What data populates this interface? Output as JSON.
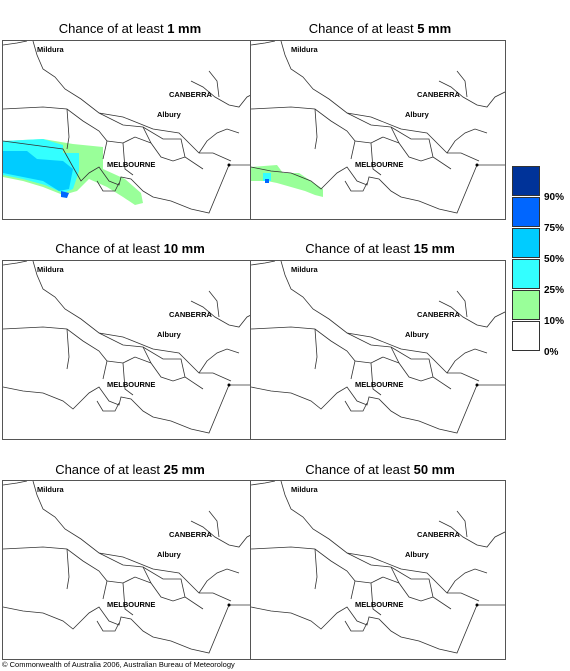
{
  "title_prefix": "Chance of at least",
  "panels": [
    {
      "amount": "1 mm"
    },
    {
      "amount": "5 mm"
    },
    {
      "amount": "10 mm"
    },
    {
      "amount": "15 mm"
    },
    {
      "amount": "25 mm"
    },
    {
      "amount": "50 mm"
    }
  ],
  "cities": {
    "mildura": "Mildura",
    "canberra": "CANBERRA",
    "albury": "Albury",
    "melbourne": "MELBOURNE"
  },
  "legend": {
    "labels": [
      "90%",
      "75%",
      "50%",
      "25%",
      "10%",
      "0%"
    ],
    "colors": [
      "#003399",
      "#0066ff",
      "#00ccff",
      "#33ffff",
      "#99ff99",
      "#ffffff"
    ]
  },
  "copyright": "© Commonwealth of Australia 2006, Australian Bureau of Meteorology"
}
